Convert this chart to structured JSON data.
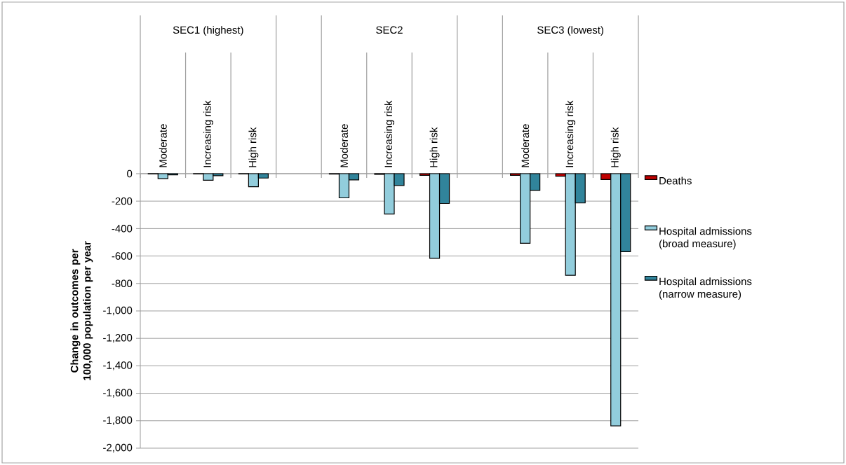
{
  "chart_data": {
    "type": "bar",
    "ylabel": "Change in outcomes per 100,000 population per year",
    "categories": [
      "Moderate",
      "Increasing risk",
      "High risk",
      null,
      "Moderate",
      "Increasing risk",
      "High risk",
      null,
      "Moderate",
      "Increasing risk",
      "High risk"
    ],
    "annotations": [
      "SEC1 (highest)",
      "SEC2",
      "SEC3 (lowest)"
    ],
    "series": [
      {
        "name": "Deaths",
        "color": "#c00000",
        "values": [
          -2,
          -2,
          -2,
          null,
          -3,
          -5,
          -12,
          null,
          -12,
          -19,
          -43
        ]
      },
      {
        "name": "Hospital admissions (broad measure)",
        "color": "#92cddc",
        "values": [
          -36,
          -48,
          -95,
          null,
          -176,
          -294,
          -617,
          null,
          -507,
          -741,
          -1837
        ]
      },
      {
        "name": "Hospital admissions (narrow measure)",
        "color": "#31849b",
        "values": [
          -8,
          -15,
          -32,
          null,
          -45,
          -86,
          -217,
          null,
          -122,
          -213,
          -568
        ]
      }
    ],
    "ylim": [
      -2000,
      0
    ],
    "yticks": [
      {
        "value": -2000,
        "label": "-2,000"
      },
      {
        "value": -1800,
        "label": "-1,800"
      },
      {
        "value": -1600,
        "label": "-1,600"
      },
      {
        "value": -1400,
        "label": "-1,400"
      },
      {
        "value": -1200,
        "label": "-1,200"
      },
      {
        "value": -1000,
        "label": "-1,000"
      },
      -800,
      -600,
      -400,
      -200,
      0
    ],
    "grid": "y",
    "legend": "right"
  }
}
